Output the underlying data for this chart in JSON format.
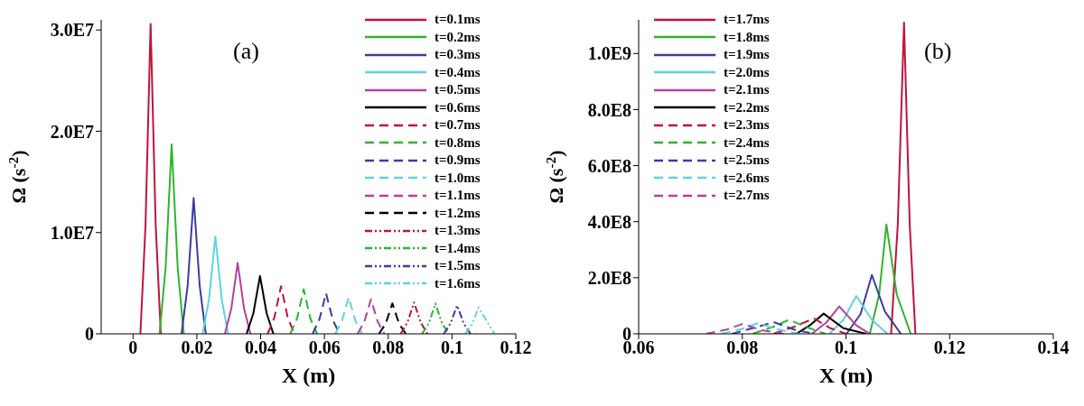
{
  "chart_data": [
    {
      "type": "line",
      "xlabel": "X (m)",
      "ylabel": "Ω (s$^{-2}$)",
      "annotations": [
        "(a)"
      ],
      "legend": "top right",
      "xlim": [
        -0.01,
        0.12
      ],
      "xticks": [
        0,
        0.02,
        0.04,
        0.06,
        0.08,
        0.1,
        0.12
      ],
      "ylim": [
        0,
        31000000
      ],
      "yticks": [
        0,
        {
          "value": 10000000,
          "label": "1.0E7"
        },
        {
          "value": 20000000,
          "label": "2.0E7"
        },
        {
          "value": 30000000,
          "label": "3.0E7"
        }
      ],
      "series": [
        {
          "name": "t=0.1ms",
          "color": "#c0143c",
          "line_style": "solid",
          "x": [
            0.0023,
            0.0039,
            0.0055,
            0.0071,
            0.0087
          ],
          "values": [
            0,
            10700000,
            30600000,
            10700000,
            0
          ]
        },
        {
          "name": "t=0.2ms",
          "color": "#2db52d",
          "line_style": "solid",
          "x": [
            0.0083,
            0.0102,
            0.0121,
            0.014,
            0.0159
          ],
          "values": [
            0,
            6500000,
            18700000,
            6500000,
            0
          ]
        },
        {
          "name": "t=0.3ms",
          "color": "#3c3ca0",
          "line_style": "solid",
          "x": [
            0.0152,
            0.0171,
            0.019,
            0.0209,
            0.0228
          ],
          "values": [
            0,
            4700000,
            13400000,
            4700000,
            0
          ]
        },
        {
          "name": "t=0.4ms",
          "color": "#5fd3e0",
          "line_style": "solid",
          "x": [
            0.0218,
            0.0238,
            0.0258,
            0.0278,
            0.0298
          ],
          "values": [
            0,
            3400000,
            9600000,
            3400000,
            0
          ]
        },
        {
          "name": "t=0.5ms",
          "color": "#b8409a",
          "line_style": "solid",
          "x": [
            0.0288,
            0.0308,
            0.0328,
            0.0348,
            0.0368
          ],
          "values": [
            0,
            2500000,
            7000000,
            2500000,
            0
          ]
        },
        {
          "name": "t=0.6ms",
          "color": "#000000",
          "line_style": "solid",
          "x": [
            0.0356,
            0.0377,
            0.0398,
            0.0419,
            0.044
          ],
          "values": [
            0,
            2000000,
            5700000,
            2000000,
            0
          ]
        },
        {
          "name": "t=0.7ms",
          "color": "#c0143c",
          "line_style": "dashed",
          "x": [
            0.0422,
            0.0443,
            0.0464,
            0.0485,
            0.0506
          ],
          "values": [
            0,
            1600000,
            4700000,
            1600000,
            0
          ]
        },
        {
          "name": "t=0.8ms",
          "color": "#2db52d",
          "line_style": "dashed",
          "x": [
            0.0493,
            0.0514,
            0.0535,
            0.0556,
            0.0577
          ],
          "values": [
            0,
            1500000,
            4400000,
            1500000,
            0
          ]
        },
        {
          "name": "t=0.9ms",
          "color": "#3c3ca0",
          "line_style": "dashed",
          "x": [
            0.0563,
            0.0584,
            0.0605,
            0.0626,
            0.0647
          ],
          "values": [
            0,
            1400000,
            4000000,
            1400000,
            0
          ]
        },
        {
          "name": "t=1.0ms",
          "color": "#5fd3e0",
          "line_style": "dashed",
          "x": [
            0.0634,
            0.0655,
            0.0676,
            0.0697,
            0.0718
          ],
          "values": [
            0,
            1300000,
            3600000,
            1300000,
            0
          ]
        },
        {
          "name": "t=1.1ms",
          "color": "#b8409a",
          "line_style": "dashed",
          "x": [
            0.0704,
            0.0725,
            0.0746,
            0.0767,
            0.0788
          ],
          "values": [
            0,
            1200000,
            3400000,
            1200000,
            0
          ]
        },
        {
          "name": "t=1.2ms",
          "color": "#000000",
          "line_style": "dashed",
          "x": [
            0.0771,
            0.0792,
            0.0813,
            0.0834,
            0.0855
          ],
          "values": [
            0,
            1000000,
            3000000,
            1000000,
            0
          ]
        },
        {
          "name": "t=1.3ms",
          "color": "#c0143c",
          "line_style": "dotted",
          "x": [
            0.0839,
            0.086,
            0.0881,
            0.0902,
            0.0923
          ],
          "values": [
            0,
            1100000,
            3100000,
            1100000,
            0
          ]
        },
        {
          "name": "t=1.4ms",
          "color": "#2db52d",
          "line_style": "dotted",
          "x": [
            0.0906,
            0.0927,
            0.0948,
            0.0969,
            0.099
          ],
          "values": [
            0,
            1000000,
            3000000,
            1000000,
            0
          ]
        },
        {
          "name": "t=1.5ms",
          "color": "#3c3ca0",
          "line_style": "dotted",
          "x": [
            0.0974,
            0.0995,
            0.1016,
            0.1037,
            0.1058
          ],
          "values": [
            0,
            1000000,
            2800000,
            1000000,
            0
          ]
        },
        {
          "name": "t=1.6ms",
          "color": "#5fd3e0",
          "line_style": "dotted",
          "x": [
            0.1041,
            0.1062,
            0.1083,
            0.1108,
            0.1133
          ],
          "values": [
            0,
            900000,
            2600000,
            1300000,
            0
          ]
        }
      ]
    },
    {
      "type": "line",
      "xlabel": "X (m)",
      "ylabel": "Ω (s$^{-2}$)",
      "annotations": [
        "(b)"
      ],
      "legend": "top left",
      "xlim": [
        0.06,
        0.14
      ],
      "xticks": [
        0.06,
        0.08,
        0.1,
        0.12,
        0.14
      ],
      "ylim": [
        0,
        1120000000
      ],
      "yticks": [
        0,
        {
          "value": 200000000,
          "label": "2.0E8"
        },
        {
          "value": 400000000,
          "label": "4.0E8"
        },
        {
          "value": 600000000,
          "label": "6.0E8"
        },
        {
          "value": 800000000,
          "label": "8.0E8"
        },
        {
          "value": 1000000000,
          "label": "1.0E9"
        }
      ],
      "series": [
        {
          "name": "t=1.7ms",
          "color": "#c0143c",
          "line_style": "solid",
          "x": [
            0.1087,
            0.11,
            0.1112,
            0.1123,
            0.1134
          ],
          "values": [
            0,
            390000000,
            1110000000,
            390000000,
            0
          ]
        },
        {
          "name": "t=1.8ms",
          "color": "#2db52d",
          "line_style": "solid",
          "x": [
            0.1046,
            0.1064,
            0.1078,
            0.1098,
            0.1125
          ],
          "values": [
            0,
            140000000,
            390000000,
            140000000,
            0
          ]
        },
        {
          "name": "t=1.9ms",
          "color": "#3c3ca0",
          "line_style": "solid",
          "x": [
            0.1001,
            0.1028,
            0.105,
            0.1075,
            0.1106
          ],
          "values": [
            0,
            70000000,
            210000000,
            80000000,
            0
          ]
        },
        {
          "name": "t=2.0ms",
          "color": "#5fd3e0",
          "line_style": "solid",
          "x": [
            0.0968,
            0.0995,
            0.102,
            0.105,
            0.108
          ],
          "values": [
            0,
            50000000,
            135000000,
            50000000,
            0
          ]
        },
        {
          "name": "t=2.1ms",
          "color": "#b8409a",
          "line_style": "solid",
          "x": [
            0.0934,
            0.0962,
            0.0987,
            0.102,
            0.1046
          ],
          "values": [
            0,
            40000000,
            98000000,
            30000000,
            0
          ]
        },
        {
          "name": "t=2.2ms",
          "color": "#000000",
          "line_style": "solid",
          "x": [
            0.0904,
            0.093,
            0.0957,
            0.0995,
            0.1039
          ],
          "values": [
            0,
            30000000,
            72000000,
            20000000,
            0
          ]
        },
        {
          "name": "t=2.3ms",
          "color": "#c0143c",
          "line_style": "dashed",
          "x": [
            0.086,
            0.09,
            0.0938,
            0.097,
            0.1
          ],
          "values": [
            0,
            25000000,
            55000000,
            20000000,
            0
          ]
        },
        {
          "name": "t=2.4ms",
          "color": "#2db52d",
          "line_style": "dashed",
          "x": [
            0.082,
            0.086,
            0.089,
            0.093,
            0.096
          ],
          "values": [
            0,
            25000000,
            50000000,
            20000000,
            0
          ]
        },
        {
          "name": "t=2.5ms",
          "color": "#3c3ca0",
          "line_style": "dashed",
          "x": [
            0.078,
            0.082,
            0.086,
            0.09,
            0.094
          ],
          "values": [
            0,
            20000000,
            42000000,
            15000000,
            0
          ]
        },
        {
          "name": "t=2.6ms",
          "color": "#5fd3e0",
          "line_style": "dashed",
          "x": [
            0.076,
            0.08,
            0.083,
            0.087,
            0.091
          ],
          "values": [
            0,
            18000000,
            38000000,
            15000000,
            0
          ]
        },
        {
          "name": "t=2.7ms",
          "color": "#b8409a",
          "line_style": "dashed",
          "x": [
            0.073,
            0.077,
            0.08,
            0.084,
            0.088
          ],
          "values": [
            0,
            15000000,
            35000000,
            12000000,
            0
          ]
        }
      ]
    }
  ]
}
